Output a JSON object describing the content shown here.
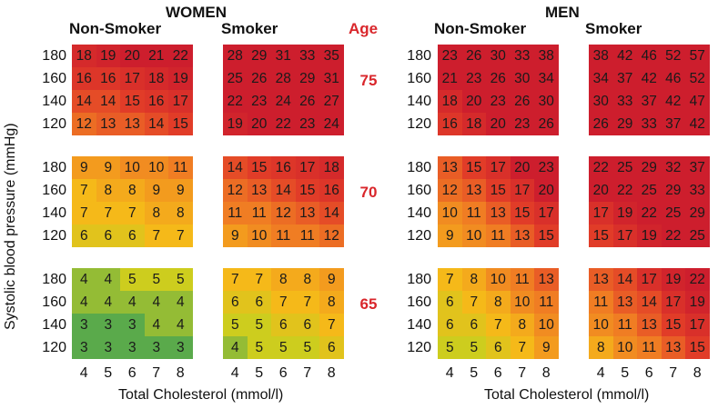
{
  "chart_data": {
    "type": "heatmap",
    "genders": [
      "WOMEN",
      "MEN"
    ],
    "smoking_groups": [
      "Non-Smoker",
      "Smoker"
    ],
    "age_header": "Age",
    "ages": [
      "75",
      "70",
      "65"
    ],
    "systolic_bp": [
      "180",
      "160",
      "140",
      "120"
    ],
    "cholesterol": [
      "4",
      "5",
      "6",
      "7",
      "8"
    ],
    "xlabel": "Total Cholesterol (mmol/l)",
    "ylabel": "Systolic blood pressure (mmHg)",
    "values": {
      "WOMEN": {
        "Non-Smoker": {
          "75": [
            [
              18,
              19,
              20,
              21,
              22
            ],
            [
              16,
              16,
              17,
              18,
              19
            ],
            [
              14,
              14,
              15,
              16,
              17
            ],
            [
              12,
              13,
              13,
              14,
              15
            ]
          ],
          "70": [
            [
              9,
              9,
              10,
              10,
              11
            ],
            [
              7,
              8,
              8,
              9,
              9
            ],
            [
              7,
              7,
              7,
              8,
              8
            ],
            [
              6,
              6,
              6,
              7,
              7
            ]
          ],
          "65": [
            [
              4,
              4,
              5,
              5,
              5
            ],
            [
              4,
              4,
              4,
              4,
              4
            ],
            [
              3,
              3,
              3,
              4,
              4
            ],
            [
              3,
              3,
              3,
              3,
              3
            ]
          ]
        },
        "Smoker": {
          "75": [
            [
              28,
              29,
              31,
              33,
              35
            ],
            [
              25,
              26,
              28,
              29,
              31
            ],
            [
              22,
              23,
              24,
              26,
              27
            ],
            [
              19,
              20,
              22,
              23,
              24
            ]
          ],
          "70": [
            [
              14,
              15,
              16,
              17,
              18
            ],
            [
              12,
              13,
              14,
              15,
              16
            ],
            [
              11,
              11,
              12,
              13,
              14
            ],
            [
              9,
              10,
              11,
              11,
              12
            ]
          ],
          "65": [
            [
              7,
              7,
              8,
              8,
              9
            ],
            [
              6,
              6,
              7,
              7,
              8
            ],
            [
              5,
              5,
              6,
              6,
              7
            ],
            [
              4,
              5,
              5,
              5,
              6
            ]
          ]
        }
      },
      "MEN": {
        "Non-Smoker": {
          "75": [
            [
              23,
              26,
              30,
              33,
              38
            ],
            [
              21,
              23,
              26,
              30,
              34
            ],
            [
              18,
              20,
              23,
              26,
              30
            ],
            [
              16,
              18,
              20,
              23,
              26
            ]
          ],
          "70": [
            [
              13,
              15,
              17,
              20,
              23
            ],
            [
              12,
              13,
              15,
              17,
              20
            ],
            [
              10,
              11,
              13,
              15,
              17
            ],
            [
              9,
              10,
              11,
              13,
              15
            ]
          ],
          "65": [
            [
              7,
              8,
              10,
              11,
              13
            ],
            [
              6,
              7,
              8,
              10,
              11
            ],
            [
              6,
              6,
              7,
              8,
              10
            ],
            [
              5,
              5,
              6,
              7,
              9
            ]
          ]
        },
        "Smoker": {
          "75": [
            [
              38,
              42,
              46,
              52,
              57
            ],
            [
              34,
              37,
              42,
              46,
              52
            ],
            [
              30,
              33,
              37,
              42,
              47
            ],
            [
              26,
              29,
              33,
              37,
              42
            ]
          ],
          "70": [
            [
              22,
              25,
              29,
              32,
              37
            ],
            [
              20,
              22,
              25,
              29,
              33
            ],
            [
              17,
              19,
              22,
              25,
              29
            ],
            [
              15,
              17,
              19,
              22,
              25
            ]
          ],
          "65": [
            [
              13,
              14,
              17,
              19,
              22
            ],
            [
              11,
              13,
              14,
              17,
              19
            ],
            [
              10,
              11,
              13,
              15,
              17
            ],
            [
              8,
              10,
              11,
              13,
              15
            ]
          ]
        }
      }
    }
  }
}
